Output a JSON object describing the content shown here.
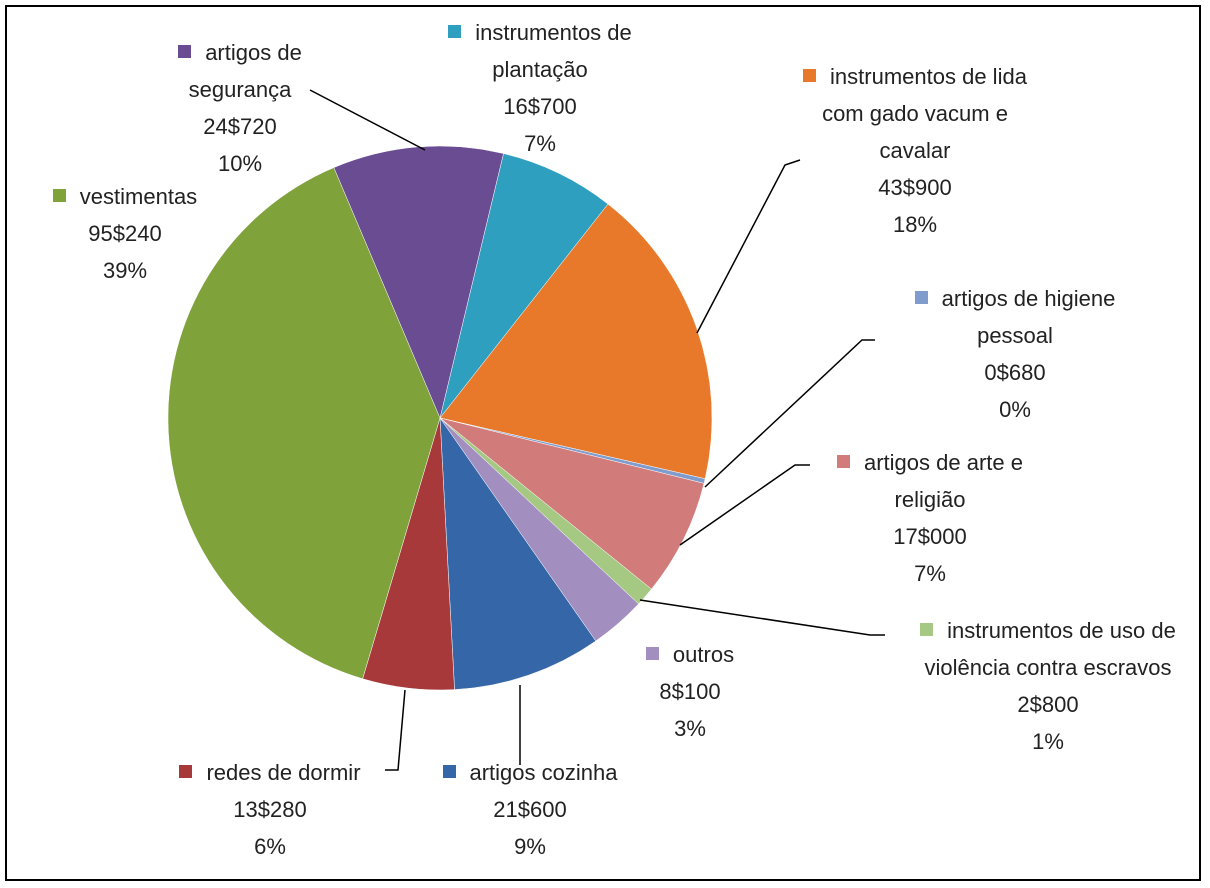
{
  "chart_data": {
    "type": "pie",
    "categories": [
      "instrumentos de plantação",
      "instrumentos de lida com gado vacum e cavalar",
      "artigos de higiene pessoal",
      "artigos de arte e religião",
      "instrumentos de uso de violência contra escravos",
      "outros",
      "artigos cozinha",
      "redes de dormir",
      "vestimentas",
      "artigos de segurança"
    ],
    "values": [
      16.7,
      43.9,
      0.68,
      17.0,
      2.8,
      8.1,
      21.6,
      13.28,
      95.24,
      24.72
    ],
    "value_labels": [
      "16$700",
      "43$900",
      "0$680",
      "17$000",
      "2$800",
      "8$100",
      "21$600",
      "13$280",
      "95$240",
      "24$720"
    ],
    "percentages": [
      7,
      18,
      0,
      7,
      1,
      3,
      9,
      6,
      39,
      10
    ],
    "percentage_labels": [
      "7%",
      "18%",
      "0%",
      "7%",
      "1%",
      "3%",
      "9%",
      "6%",
      "39%",
      "10%"
    ],
    "colors": [
      "#2e9fbf",
      "#e8792a",
      "#7f9ccc",
      "#d27b7b",
      "#a5c882",
      "#a28fc0",
      "#3566a8",
      "#a8393a",
      "#7fa23a",
      "#6a4c93"
    ]
  }
}
